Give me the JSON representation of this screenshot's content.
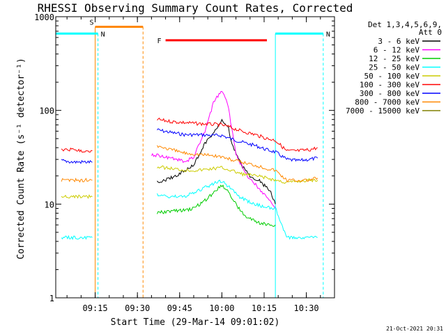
{
  "chart_data": {
    "type": "line",
    "title": "RHESSI Observing Summary Count Rates, Corrected",
    "xlabel": "Start Time (29-Mar-14 09:01:02)",
    "ylabel": "Corrected Count Rate (s⁻¹ detector⁻¹)",
    "yscale": "log",
    "ylim": [
      1,
      1000
    ],
    "xlim": [
      "09:01",
      "10:40"
    ],
    "x_ticks": [
      "09:15",
      "09:30",
      "09:45",
      "10:00",
      "10:15",
      "10:30"
    ],
    "y_ticks": [
      "1",
      "10",
      "100",
      "1000"
    ],
    "grid": false,
    "legend_position": "right",
    "legend_header": [
      "Det 1,3,4,5,6,9,",
      "Att 0"
    ],
    "footer_date": "21-Oct-2021 20:31",
    "series": [
      {
        "name": "3 - 6 keV",
        "color": "#000000",
        "x": [
          "09:37",
          "09:42",
          "09:46",
          "09:50",
          "09:54",
          "09:58",
          "10:00",
          "10:02",
          "10:04",
          "10:07",
          "10:10",
          "10:13",
          "10:17",
          "10:19"
        ],
        "values": [
          17,
          19,
          22,
          26,
          45,
          62,
          78,
          70,
          40,
          26,
          20,
          18,
          14,
          10
        ]
      },
      {
        "name": "6 - 12 keV",
        "color": "#ff00ff",
        "x": [
          "09:35",
          "09:40",
          "09:44",
          "09:47",
          "09:50",
          "09:54",
          "09:57",
          "09:59",
          "10:00",
          "10:02",
          "10:05",
          "10:08",
          "10:12",
          "10:16",
          "10:19"
        ],
        "values": [
          34,
          32,
          30,
          28,
          32,
          60,
          120,
          150,
          160,
          120,
          35,
          22,
          16,
          12,
          9
        ]
      },
      {
        "name": "12 - 25 keV",
        "color": "#00cc00",
        "x": [
          "09:37",
          "09:42",
          "09:46",
          "09:50",
          "09:54",
          "09:58",
          "10:00",
          "10:02",
          "10:05",
          "10:08",
          "10:12",
          "10:16",
          "10:19"
        ],
        "values": [
          8,
          8.5,
          8.5,
          9,
          11,
          14,
          16,
          14,
          10,
          7.5,
          6.5,
          6,
          6
        ]
      },
      {
        "name": "25 - 50 keV",
        "color": "#00ffff",
        "x": [
          "09:03",
          "09:07",
          "09:11",
          "09:14",
          "09:37",
          "09:42",
          "09:46",
          "09:50",
          "09:54",
          "09:58",
          "10:00",
          "10:03",
          "10:06",
          "10:10",
          "10:14",
          "10:19",
          "10:23",
          "10:27",
          "10:31",
          "10:34"
        ],
        "values": [
          4.4,
          4.4,
          4.4,
          4.4,
          12.5,
          12,
          12,
          13,
          15,
          17,
          17.5,
          15,
          12,
          10.5,
          9.5,
          9,
          4.4,
          4.4,
          4.4,
          4.4
        ]
      },
      {
        "name": "50 - 100 keV",
        "color": "#cccc00",
        "x": [
          "09:03",
          "09:07",
          "09:11",
          "09:14",
          "09:37",
          "09:42",
          "09:47",
          "09:52",
          "09:57",
          "10:00",
          "10:03",
          "10:07",
          "10:12",
          "10:16",
          "10:19",
          "10:23",
          "10:27",
          "10:31",
          "10:34"
        ],
        "values": [
          12,
          12,
          12,
          12,
          25,
          24,
          23,
          23,
          24,
          24.5,
          23,
          21,
          20,
          19,
          18,
          17,
          17.5,
          18,
          18
        ]
      },
      {
        "name": "100 - 300 keV",
        "color": "#ff0000",
        "x": [
          "09:03",
          "09:07",
          "09:11",
          "09:14",
          "09:37",
          "09:42",
          "09:47",
          "09:52",
          "09:57",
          "10:00",
          "10:03",
          "10:07",
          "10:12",
          "10:16",
          "10:19",
          "10:23",
          "10:27",
          "10:31",
          "10:34"
        ],
        "values": [
          38,
          38,
          37,
          37,
          80,
          76,
          74,
          72,
          71,
          70,
          66,
          60,
          55,
          50,
          48,
          37,
          37,
          38,
          40
        ]
      },
      {
        "name": "300 - 800 keV",
        "color": "#0000ff",
        "x": [
          "09:03",
          "09:07",
          "09:11",
          "09:14",
          "09:37",
          "09:42",
          "09:47",
          "09:52",
          "09:57",
          "10:00",
          "10:03",
          "10:07",
          "10:12",
          "10:16",
          "10:19",
          "10:23",
          "10:27",
          "10:31",
          "10:34"
        ],
        "values": [
          29,
          28,
          28,
          28,
          62,
          58,
          55,
          55,
          54,
          54,
          50,
          46,
          42,
          38,
          36,
          30,
          29,
          30,
          31
        ]
      },
      {
        "name": "800 - 7000 keV",
        "color": "#ff8800",
        "x": [
          "09:03",
          "09:07",
          "09:11",
          "09:14",
          "09:37",
          "09:42",
          "09:47",
          "09:52",
          "09:57",
          "10:00",
          "10:03",
          "10:07",
          "10:12",
          "10:16",
          "10:19",
          "10:23",
          "10:27",
          "10:31",
          "10:34"
        ],
        "values": [
          18,
          18,
          18,
          18,
          42,
          38,
          35,
          34,
          33,
          32,
          30,
          28,
          26,
          24,
          23,
          18,
          18,
          18,
          19
        ]
      },
      {
        "name": "7000 - 15000 keV",
        "color": "#808000",
        "x": [],
        "values": []
      }
    ],
    "markers": [
      {
        "label": "S",
        "color": "#ff8800",
        "x_start": "09:15",
        "x_end": "09:32",
        "y": 780
      },
      {
        "label": "N",
        "color": "#00ffff",
        "x_start": "09:01",
        "x_end": "09:16",
        "y": 660
      },
      {
        "label": "N",
        "color": "#00ffff",
        "x_start": "10:19",
        "x_end": "10:36",
        "y": 660
      },
      {
        "label": "F",
        "color": "#ff0000",
        "x_start": "09:40",
        "x_end": "10:16",
        "y": 560
      }
    ]
  }
}
